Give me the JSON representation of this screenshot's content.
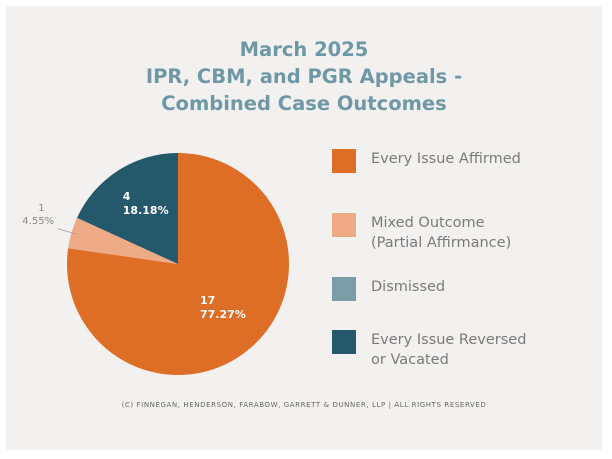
{
  "chart_data": {
    "type": "pie",
    "title_lines": [
      "March 2025",
      "IPR, CBM, and PGR Appeals -",
      "Combined Case Outcomes"
    ],
    "slices": [
      {
        "label": "Every Issue Affirmed",
        "count": "17",
        "percent": "77.27%",
        "value": 17,
        "color": "#de6d26",
        "show_label": true
      },
      {
        "label": "Mixed Outcome\n(Partial Affirmance)",
        "count": "1",
        "percent": "4.55%",
        "value": 1,
        "color": "#eeaa85",
        "show_label": true
      },
      {
        "label": "Dismissed",
        "count": "",
        "percent": "",
        "value": 0,
        "color": "#7c9ca8",
        "show_label": false
      },
      {
        "label": "Every Issue Reversed\nor Vacated",
        "count": "4",
        "percent": "18.18%",
        "value": 4,
        "color": "#24586b",
        "show_label": true
      }
    ]
  },
  "footer": "(C) FINNEGAN, HENDERSON, FARABOW, GARRETT & DUNNER, LLP | ALL RIGHTS RESERVED"
}
